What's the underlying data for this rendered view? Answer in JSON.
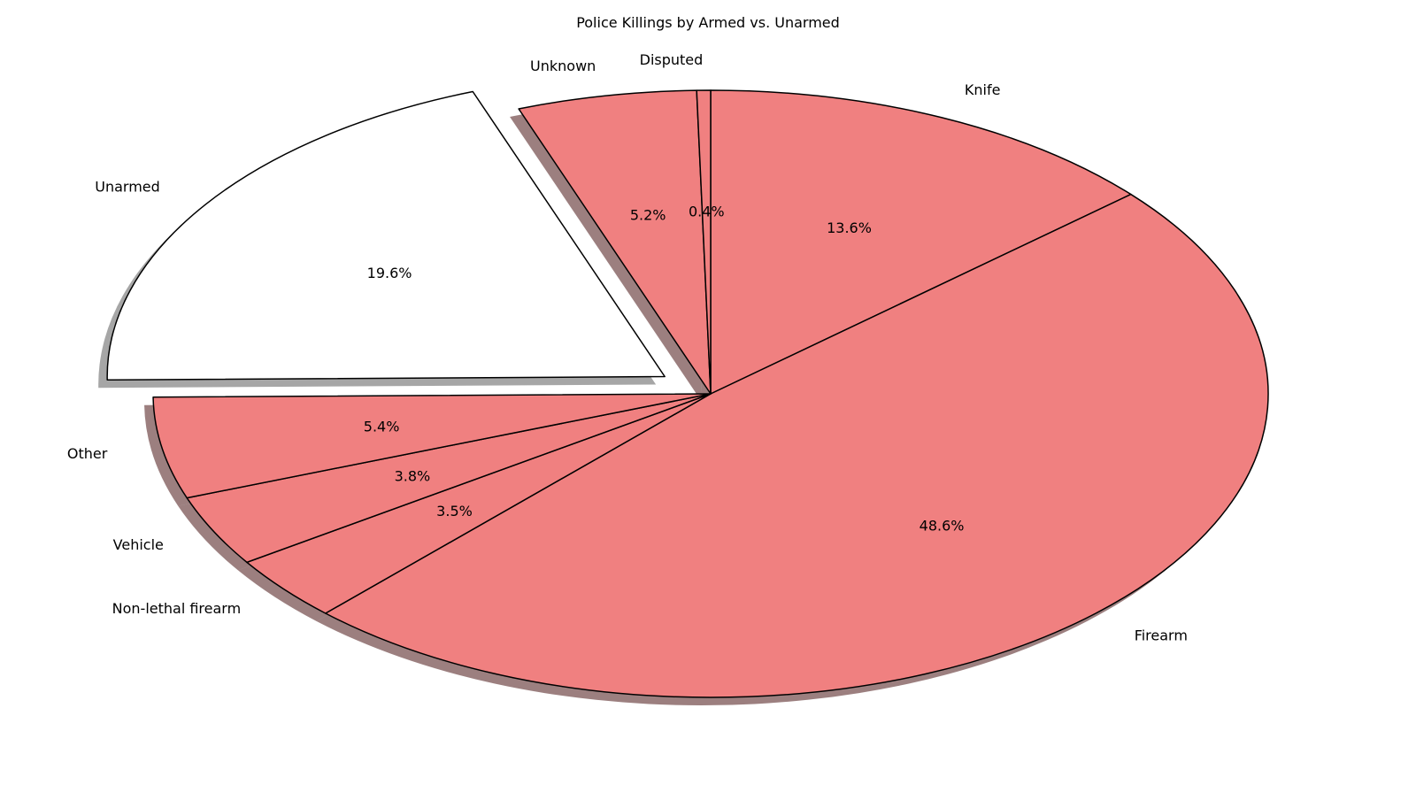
{
  "chart_data": {
    "type": "pie",
    "title": "Police Killings by Armed vs. Unarmed",
    "slices": [
      {
        "label": "Knife",
        "value": 13.6,
        "pct_label": "13.6%",
        "color": "#f08080",
        "exploded": false
      },
      {
        "label": "Firearm",
        "value": 48.6,
        "pct_label": "48.6%",
        "color": "#f08080",
        "exploded": false
      },
      {
        "label": "Non-lethal firearm",
        "value": 3.5,
        "pct_label": "3.5%",
        "color": "#f08080",
        "exploded": false
      },
      {
        "label": "Vehicle",
        "value": 3.8,
        "pct_label": "3.8%",
        "color": "#f08080",
        "exploded": false
      },
      {
        "label": "Other",
        "value": 5.4,
        "pct_label": "5.4%",
        "color": "#f08080",
        "exploded": false
      },
      {
        "label": "Unarmed",
        "value": 19.6,
        "pct_label": "19.6%",
        "color": "#ffffff",
        "exploded": true
      },
      {
        "label": "Unknown",
        "value": 5.2,
        "pct_label": "5.2%",
        "color": "#f08080",
        "exploded": false
      },
      {
        "label": "Disputed",
        "value": 0.4,
        "pct_label": "0.4%",
        "color": "#f08080",
        "exploded": false
      }
    ],
    "start_angle_deg": 90,
    "direction": "clockwise",
    "shadow": true,
    "edge_color": "#000000",
    "shadow_color": "#000000"
  }
}
